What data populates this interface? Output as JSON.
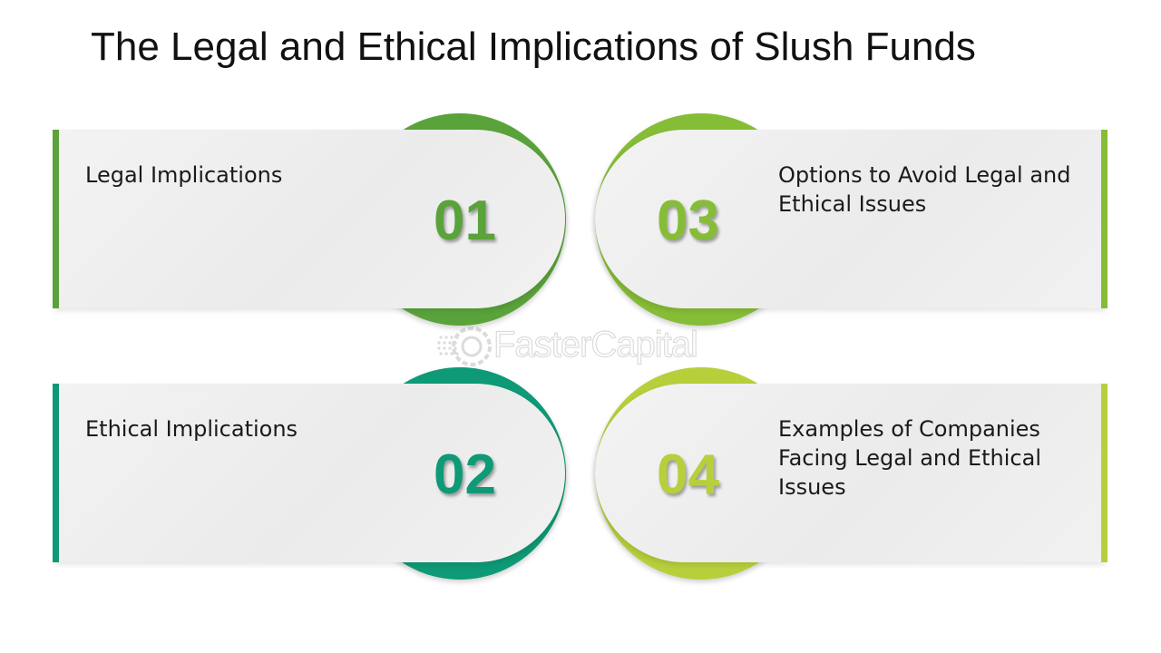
{
  "title": "The Legal and Ethical Implications of Slush Funds",
  "items": [
    {
      "number": "01",
      "label": "Legal Implications",
      "color": "#5aa33a"
    },
    {
      "number": "02",
      "label": "Ethical Implications",
      "color": "#0e9a76"
    },
    {
      "number": "03",
      "label": "Options to Avoid Legal and Ethical Issues",
      "color": "#86bd36"
    },
    {
      "number": "04",
      "label": "Examples of Companies Facing Legal and Ethical Issues",
      "color": "#b8cf3c"
    }
  ],
  "watermark": {
    "text": "FasterCapital"
  }
}
